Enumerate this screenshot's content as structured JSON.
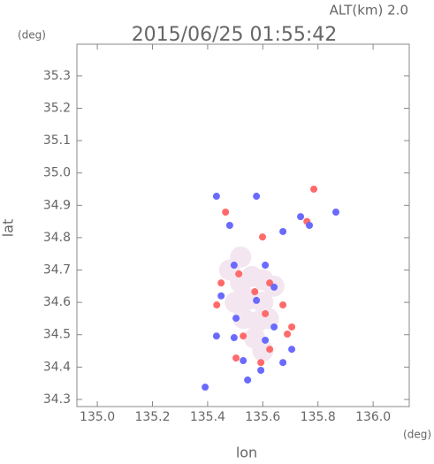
{
  "chart_data": {
    "type": "scatter",
    "title": "2015/06/25 01:55:42",
    "annotations": [
      "ALT(km) 2.0",
      "(deg)",
      "(deg)"
    ],
    "xlabel": "lon",
    "ylabel": "lat",
    "xlim": [
      134.926,
      136.131
    ],
    "ylim": [
      34.278,
      35.398
    ],
    "xticks": [
      {
        "value": 135.0,
        "label": "135.0"
      },
      135.2,
      135.4,
      135.6,
      135.8,
      {
        "value": 136.0,
        "label": "136.0"
      }
    ],
    "yticks": [
      34.3,
      34.4,
      34.5,
      34.6,
      34.7,
      34.8,
      34.9,
      {
        "value": 35.0,
        "label": "35.0"
      },
      35.1,
      35.2,
      35.3
    ],
    "series": [
      {
        "color": "#f3e6f0",
        "x": [
          135.52,
          135.56,
          135.6,
          135.64,
          135.5,
          135.55,
          135.6,
          135.53,
          135.58,
          135.62,
          135.57,
          135.6,
          135.48,
          135.52
        ],
        "y": [
          34.66,
          34.68,
          34.67,
          34.65,
          34.6,
          34.61,
          34.6,
          34.55,
          34.54,
          34.55,
          34.49,
          34.45,
          34.7,
          34.74
        ]
      },
      {
        "color": "#ff6a6a",
        "x": [
          135.785,
          135.599,
          135.513,
          135.449,
          135.625,
          135.433,
          135.609,
          135.705,
          135.529,
          135.689,
          135.593,
          135.503,
          135.673,
          135.76,
          135.465,
          135.571,
          135.625
        ],
        "y": [
          34.95,
          34.802,
          34.688,
          34.66,
          34.66,
          34.592,
          34.565,
          34.524,
          34.496,
          34.502,
          34.414,
          34.428,
          34.592,
          34.85,
          34.879,
          34.633,
          34.455
        ]
      },
      {
        "color": "#6a6aff",
        "x": [
          135.432,
          135.577,
          135.737,
          135.769,
          135.48,
          135.673,
          135.496,
          135.609,
          135.641,
          135.449,
          135.577,
          135.503,
          135.641,
          135.496,
          135.609,
          135.529,
          135.673,
          135.705,
          135.391,
          135.545,
          135.432,
          135.593,
          135.865
        ],
        "y": [
          34.928,
          34.928,
          34.865,
          34.838,
          34.838,
          34.819,
          34.715,
          34.715,
          34.647,
          34.62,
          34.606,
          34.551,
          34.524,
          34.491,
          34.483,
          34.42,
          34.414,
          34.455,
          34.338,
          34.36,
          34.496,
          34.39,
          34.879
        ]
      }
    ]
  }
}
